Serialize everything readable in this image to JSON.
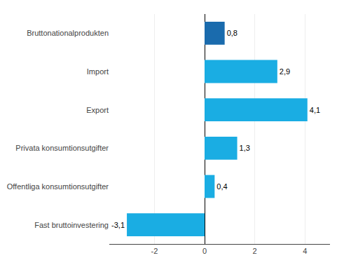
{
  "chart_data": {
    "type": "bar",
    "orientation": "horizontal",
    "categories": [
      "Fast bruttoinvestering",
      "Offentliga konsumtionsutgifter",
      "Privata konsumtionsutgifter",
      "Export",
      "Import",
      "Bruttonationalprodukten"
    ],
    "values": [
      -3.1,
      0.4,
      1.3,
      4.1,
      2.9,
      0.8
    ],
    "value_labels": [
      "-3,1",
      "0,4",
      "1,3",
      "4,1",
      "2,9",
      "0,8"
    ],
    "colors": [
      "#1aade3",
      "#1aade3",
      "#1aade3",
      "#1aade3",
      "#1aade3",
      "#1a6bad"
    ],
    "xlim": [
      -3.8,
      5.0
    ],
    "xticks": [
      -2,
      0,
      2,
      4
    ],
    "grid": true,
    "data_labels": true
  }
}
